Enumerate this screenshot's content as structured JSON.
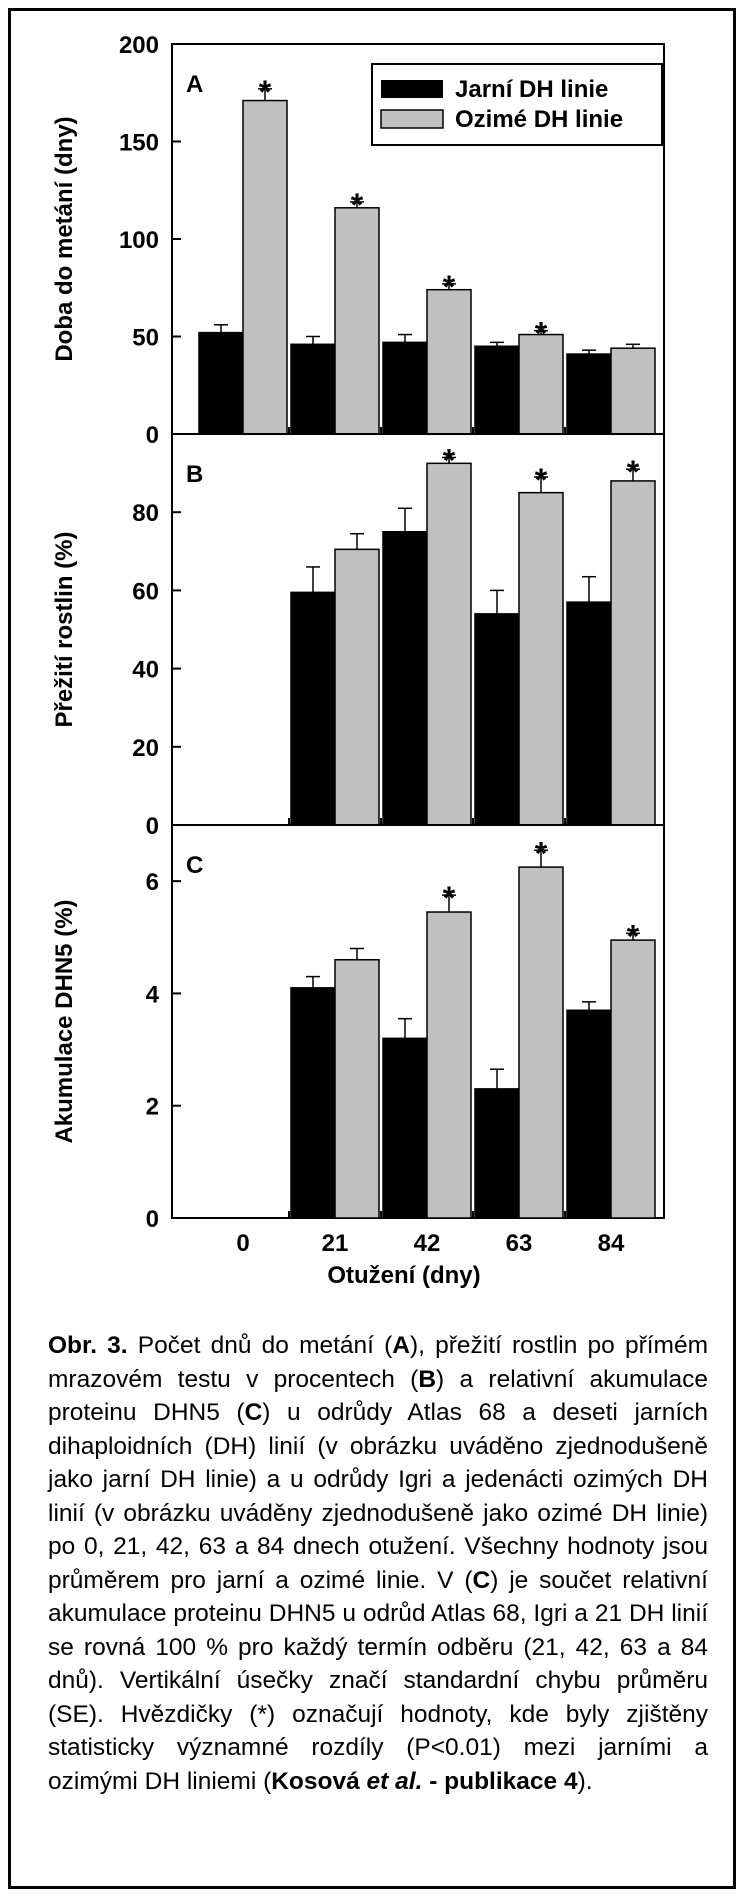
{
  "legend": [
    {
      "label": "Jarní DH linie",
      "color": "#000000"
    },
    {
      "label": "Ozimé DH linie",
      "color": "#c0c0c0"
    }
  ],
  "colors": {
    "spring": "#000000",
    "winter": "#c0c0c0",
    "axis": "#000000"
  },
  "chart_data": [
    {
      "type": "bar",
      "panel_label": "A",
      "ylabel": "Doba do metání (dny)",
      "xlabel": "Otužení (dny)",
      "categories": [
        "0",
        "21",
        "42",
        "63",
        "84"
      ],
      "ylim": [
        0,
        200
      ],
      "yticks": [
        "0",
        "50",
        "100",
        "150",
        "200"
      ],
      "series": [
        {
          "name": "Jarní DH linie",
          "values": [
            52,
            46,
            47,
            45,
            41
          ],
          "errors": [
            4,
            4,
            4,
            2,
            2
          ]
        },
        {
          "name": "Ozimé DH linie",
          "values": [
            171,
            116,
            74,
            51,
            44
          ],
          "errors": [
            6,
            3,
            3,
            2,
            2
          ]
        }
      ],
      "significant": [
        true,
        true,
        true,
        true,
        false
      ],
      "sig_marker": "*"
    },
    {
      "type": "bar",
      "panel_label": "B",
      "ylabel": "Přežití rostlin (%)",
      "xlabel": "Otužení (dny)",
      "categories": [
        "0",
        "21",
        "42",
        "63",
        "84"
      ],
      "ylim": [
        0,
        100
      ],
      "yticks": [
        "0",
        "20",
        "40",
        "60",
        "80"
      ],
      "series": [
        {
          "name": "Jarní DH linie",
          "values": [
            null,
            59.5,
            75,
            54,
            57
          ],
          "errors": [
            null,
            6.5,
            6,
            6,
            6.5
          ]
        },
        {
          "name": "Ozimé DH linie",
          "values": [
            null,
            70.5,
            92.5,
            85,
            88
          ],
          "errors": [
            null,
            4,
            1.5,
            4,
            3
          ]
        }
      ],
      "significant": [
        false,
        false,
        true,
        true,
        true
      ],
      "sig_marker": "*"
    },
    {
      "type": "bar",
      "panel_label": "C",
      "ylabel": "Akumulace DHN5 (%)",
      "xlabel": "Otužení (dny)",
      "categories": [
        "0",
        "21",
        "42",
        "63",
        "84"
      ],
      "ylim": [
        0,
        7
      ],
      "yticks": [
        "0",
        "2",
        "4",
        "6"
      ],
      "series": [
        {
          "name": "Jarní DH linie",
          "values": [
            null,
            4.1,
            3.2,
            2.3,
            3.7
          ],
          "errors": [
            null,
            0.2,
            0.35,
            0.35,
            0.15
          ]
        },
        {
          "name": "Ozimé DH linie",
          "values": [
            null,
            4.6,
            5.45,
            6.25,
            4.95
          ],
          "errors": [
            null,
            0.2,
            0.3,
            0.3,
            0.12
          ]
        }
      ],
      "significant": [
        false,
        false,
        true,
        true,
        true
      ],
      "sig_marker": "*"
    }
  ],
  "caption": {
    "prefix": "Obr. 3.",
    "part1": " Počet dnů do metání (",
    "A": "A",
    "part2": "), přežití rostlin po přímém mrazovém testu v procentech (",
    "B": "B",
    "part3": ") a relativní akumulace proteinu DHN5 (",
    "C": "C",
    "part4": ") u odrůdy Atlas 68 a deseti jarních dihaploidních (DH) linií (v obrázku uváděno zjednodušeně jako jarní DH linie) a u odrůdy Igri a jedenácti ozimých DH linií (v obrázku uváděny zjednodušeně jako ozimé DH linie) po 0, 21, 42, 63 a 84 dnech otužení. Všechny hodnoty jsou průměrem pro jarní a ozimé linie. V (",
    "C2": "C",
    "part5": ") je součet relativní akumulace proteinu DHN5 u odrůd Atlas 68, Igri a 21 DH linií se rovná 100 % pro každý termín odběru (21, 42, 63 a 84 dnů). Vertikální úsečky značí standardní chybu průměru (SE). Hvězdičky (*) označují hodnoty, kde byly zjištěny statisticky významné rozdíly (P<0.01) mezi jarními a ozimými DH liniemi (",
    "ref_name": "Kosová ",
    "ref_etal": "et al.",
    "ref_rest": " - publikace 4",
    "end": ")."
  }
}
